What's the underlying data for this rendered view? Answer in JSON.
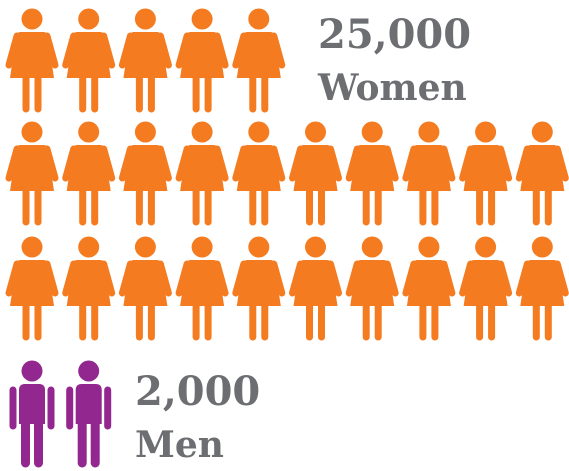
{
  "chart_data": {
    "type": "pictogram",
    "categories": [
      "Women",
      "Men"
    ],
    "values": [
      25000,
      2000
    ],
    "value_labels": [
      "25,000",
      "2,000"
    ],
    "colors": [
      "#f47b20",
      "#92278f"
    ]
  }
}
